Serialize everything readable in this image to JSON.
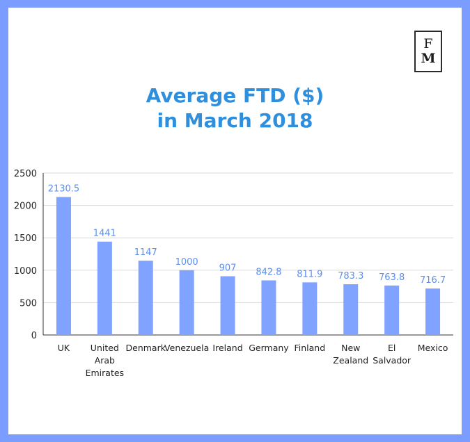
{
  "logo": {
    "line1": "F",
    "line2": "M"
  },
  "chart_data": {
    "type": "bar",
    "title": [
      "Average FTD ($)",
      "in March 2018"
    ],
    "categories": [
      [
        "UK"
      ],
      [
        "United",
        "Arab",
        "Emirates"
      ],
      [
        "Denmark"
      ],
      [
        "Venezuela"
      ],
      [
        "Ireland"
      ],
      [
        "Germany"
      ],
      [
        "Finland"
      ],
      [
        "New",
        "Zealand"
      ],
      [
        "El",
        "Salvador"
      ],
      [
        "Mexico"
      ]
    ],
    "values": [
      2130.5,
      1441,
      1147,
      1000,
      907,
      842.8,
      811.9,
      783.3,
      763.8,
      716.7
    ],
    "data_labels": [
      "2130.5",
      "1441",
      "1147",
      "1000",
      "907",
      "842.8",
      "811.9",
      "783.3",
      "763.8",
      "716.7"
    ],
    "ylim": [
      0,
      2500
    ],
    "yticks": [
      0,
      500,
      1000,
      1500,
      2000,
      2500
    ],
    "xlabel": "",
    "ylabel": "",
    "grid": true,
    "legend": "none",
    "bar_color": "#7fa3ff",
    "label_color": "#5b8ef0",
    "title_color": "#2f8fdc",
    "frame_color": "#7b9dff"
  }
}
